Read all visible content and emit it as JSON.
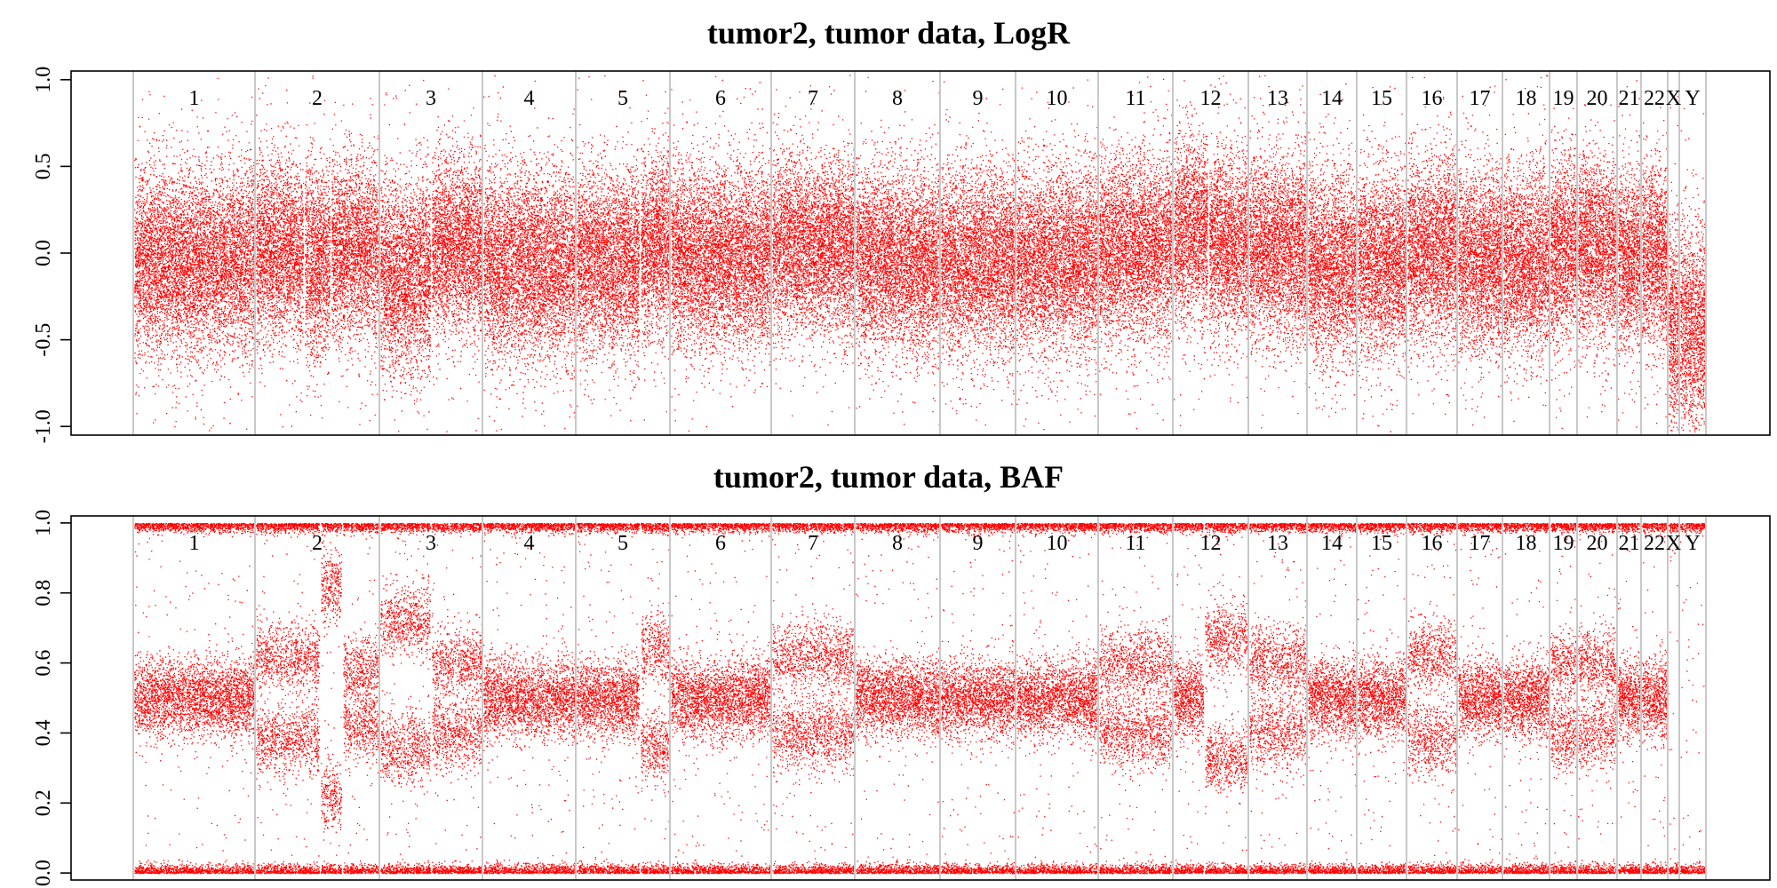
{
  "chart_data": [
    {
      "type": "scatter",
      "title": "tumor2, tumor data, LogR",
      "xlabel": "",
      "ylabel": "",
      "ylim": [
        -1.05,
        1.05
      ],
      "yticks": [
        "-1.0",
        "-0.5",
        "0.0",
        "0.5",
        "1.0"
      ],
      "color": "#ff0000",
      "grid": false,
      "legend": "none",
      "chromosomes": [
        "1",
        "2",
        "3",
        "4",
        "5",
        "6",
        "7",
        "8",
        "9",
        "10",
        "11",
        "12",
        "13",
        "14",
        "15",
        "16",
        "17",
        "18",
        "19",
        "20",
        "21",
        "22",
        "X",
        "Y"
      ],
      "segments": [
        {
          "chr": "1",
          "mean": -0.05,
          "sd": 0.26
        },
        {
          "chr": "2",
          "mean": 0.02,
          "sd": 0.25
        },
        {
          "chr": "2",
          "mean": -0.04,
          "sd": 0.27
        },
        {
          "chr": "2",
          "mean": 0.02,
          "sd": 0.25
        },
        {
          "chr": "3",
          "mean": -0.12,
          "sd": 0.27
        },
        {
          "chr": "3",
          "mean": 0.05,
          "sd": 0.25
        },
        {
          "chr": "4",
          "mean": -0.06,
          "sd": 0.26
        },
        {
          "chr": "5",
          "mean": -0.05,
          "sd": 0.26
        },
        {
          "chr": "5",
          "mean": 0.05,
          "sd": 0.25
        },
        {
          "chr": "6",
          "mean": -0.03,
          "sd": 0.26
        },
        {
          "chr": "7",
          "mean": 0.04,
          "sd": 0.25
        },
        {
          "chr": "8",
          "mean": -0.04,
          "sd": 0.26
        },
        {
          "chr": "9",
          "mean": -0.05,
          "sd": 0.26
        },
        {
          "chr": "10",
          "mean": -0.04,
          "sd": 0.26
        },
        {
          "chr": "11",
          "mean": 0.02,
          "sd": 0.26
        },
        {
          "chr": "12",
          "mean": 0.12,
          "sd": 0.26
        },
        {
          "chr": "12",
          "mean": 0.05,
          "sd": 0.26
        },
        {
          "chr": "13",
          "mean": 0.04,
          "sd": 0.26
        },
        {
          "chr": "14",
          "mean": -0.08,
          "sd": 0.27
        },
        {
          "chr": "15",
          "mean": -0.05,
          "sd": 0.26
        },
        {
          "chr": "16",
          "mean": 0.02,
          "sd": 0.26
        },
        {
          "chr": "17",
          "mean": -0.04,
          "sd": 0.26
        },
        {
          "chr": "18",
          "mean": -0.05,
          "sd": 0.26
        },
        {
          "chr": "19",
          "mean": 0.03,
          "sd": 0.26
        },
        {
          "chr": "20",
          "mean": 0.02,
          "sd": 0.26
        },
        {
          "chr": "21",
          "mean": -0.04,
          "sd": 0.26
        },
        {
          "chr": "22",
          "mean": -0.02,
          "sd": 0.26
        },
        {
          "chr": "X",
          "mean": -0.45,
          "sd": 0.3
        },
        {
          "chr": "Y",
          "mean": -0.45,
          "sd": 0.3
        }
      ]
    },
    {
      "type": "scatter",
      "title": "tumor2, tumor data, BAF",
      "xlabel": "",
      "ylabel": "",
      "ylim": [
        -0.02,
        1.02
      ],
      "yticks": [
        "0.0",
        "0.2",
        "0.4",
        "0.6",
        "0.8",
        "1.0"
      ],
      "color": "#ff0000",
      "grid": false,
      "legend": "none",
      "chromosomes": [
        "1",
        "2",
        "3",
        "4",
        "5",
        "6",
        "7",
        "8",
        "9",
        "10",
        "11",
        "12",
        "13",
        "14",
        "15",
        "16",
        "17",
        "18",
        "19",
        "20",
        "21",
        "22",
        "X",
        "Y"
      ],
      "homozygous_levels": [
        0.0,
        1.0
      ],
      "heterozygous_bands": [
        {
          "chr": "1",
          "values": [
            0.5
          ]
        },
        {
          "chr": "2",
          "values": [
            0.38,
            0.62
          ]
        },
        {
          "chr": "2",
          "values": [
            0.22,
            0.82
          ]
        },
        {
          "chr": "2",
          "values": [
            0.42,
            0.58
          ]
        },
        {
          "chr": "3",
          "values": [
            0.36,
            0.72
          ]
        },
        {
          "chr": "3",
          "values": [
            0.4,
            0.6
          ]
        },
        {
          "chr": "4",
          "values": [
            0.5
          ]
        },
        {
          "chr": "5",
          "values": [
            0.5
          ]
        },
        {
          "chr": "5",
          "values": [
            0.36,
            0.64
          ]
        },
        {
          "chr": "6",
          "values": [
            0.5
          ]
        },
        {
          "chr": "7",
          "values": [
            0.4,
            0.62
          ]
        },
        {
          "chr": "8",
          "values": [
            0.5
          ]
        },
        {
          "chr": "9",
          "values": [
            0.5
          ]
        },
        {
          "chr": "10",
          "values": [
            0.5
          ]
        },
        {
          "chr": "11",
          "values": [
            0.4,
            0.6
          ]
        },
        {
          "chr": "12",
          "values": [
            0.5
          ]
        },
        {
          "chr": "12",
          "values": [
            0.33,
            0.67
          ]
        },
        {
          "chr": "13",
          "values": [
            0.4,
            0.6
          ]
        },
        {
          "chr": "14",
          "values": [
            0.5
          ]
        },
        {
          "chr": "15",
          "values": [
            0.5
          ]
        },
        {
          "chr": "16",
          "values": [
            0.38,
            0.62
          ]
        },
        {
          "chr": "17",
          "values": [
            0.5
          ]
        },
        {
          "chr": "18",
          "values": [
            0.5
          ]
        },
        {
          "chr": "19",
          "values": [
            0.4,
            0.6
          ]
        },
        {
          "chr": "20",
          "values": [
            0.4,
            0.6
          ]
        },
        {
          "chr": "21",
          "values": [
            0.5
          ]
        },
        {
          "chr": "22",
          "values": [
            0.5
          ]
        },
        {
          "chr": "X",
          "values": []
        },
        {
          "chr": "Y",
          "values": []
        }
      ]
    }
  ]
}
